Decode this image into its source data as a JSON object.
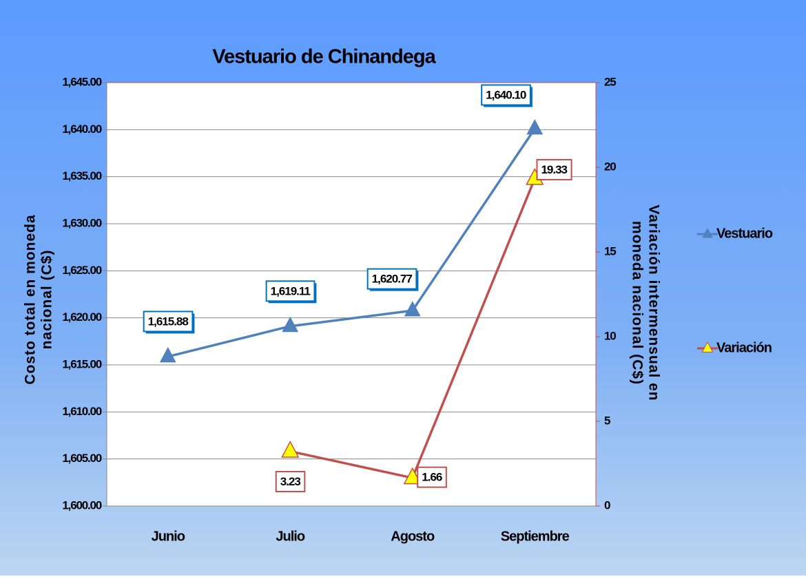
{
  "chart_data": {
    "type": "line",
    "title": "Vestuario de Chinandega",
    "ylabel": [
      "Costo total en moneda",
      "nacional (C$)"
    ],
    "y2label": [
      "Variación intermensual en",
      "moneda nacional (C$)"
    ],
    "categories": [
      "Junio",
      "Julio",
      "Agosto",
      "Septiembre"
    ],
    "series": [
      {
        "name": "Vestuario",
        "color": "#4f81bd",
        "values": [
          1615.88,
          1619.11,
          1620.77,
          1640.1
        ],
        "value_labels": [
          "1,615.88",
          "1,619.11",
          "1,620.77",
          "1,640.10"
        ]
      },
      {
        "name": "Variación",
        "color": "#c0504d",
        "marker_color": "#ffff00",
        "axis": "y2",
        "values": [
          null,
          3.23,
          1.66,
          19.33
        ]
      }
    ],
    "ylim": [
      1600,
      1645
    ],
    "yticks": [
      {
        "value": 1600,
        "label": "1,600.00"
      },
      {
        "value": 1605,
        "label": "1,605.00"
      },
      {
        "value": 1610,
        "label": "1,610.00"
      },
      {
        "value": 1615,
        "label": "1,615.00"
      },
      {
        "value": 1620,
        "label": "1,620.00"
      },
      {
        "value": 1625,
        "label": "1,625.00"
      },
      {
        "value": 1630,
        "label": "1,630.00"
      },
      {
        "value": 1635,
        "label": "1,635.00"
      },
      {
        "value": 1640,
        "label": "1,640.00"
      },
      {
        "value": 1645,
        "label": "1,645.00"
      }
    ],
    "y2lim": [
      0,
      25
    ],
    "y2ticks": [
      0,
      5,
      10,
      15,
      20,
      25
    ],
    "grid": true,
    "legend": "right"
  }
}
